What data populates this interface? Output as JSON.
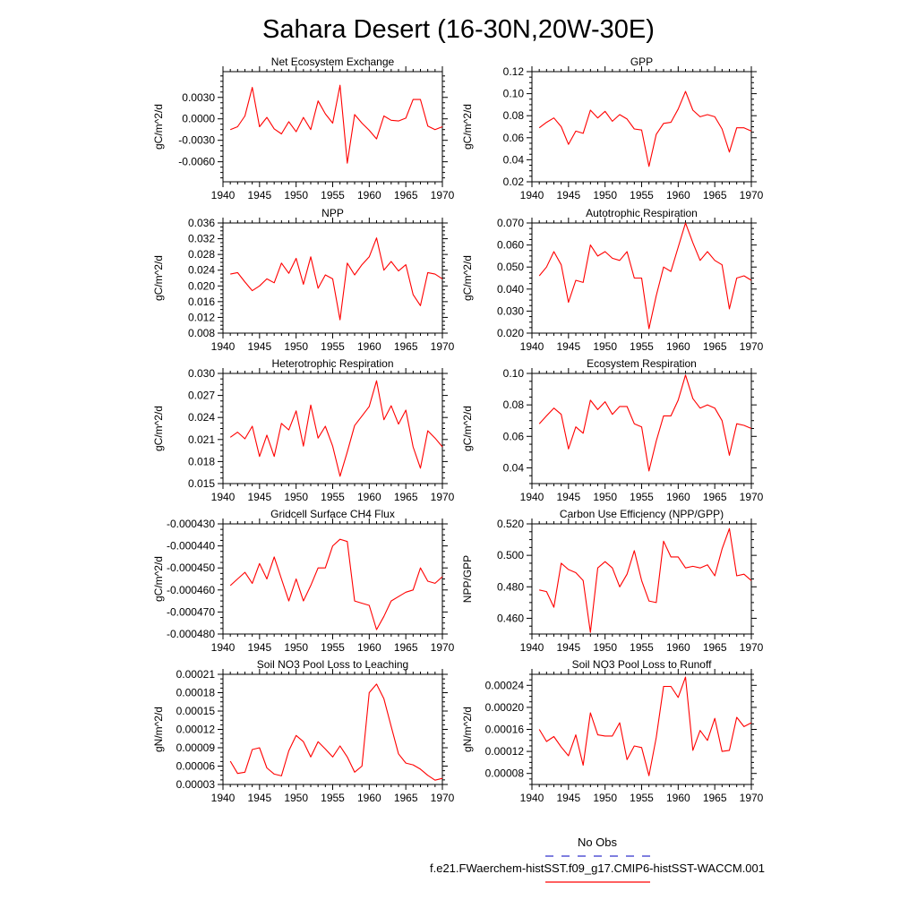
{
  "title": "Sahara Desert (16-30N,20W-30E)",
  "series_color": "#ff0000",
  "obs_color": "#3333cc",
  "legend": {
    "obs_label": "No Obs",
    "model_label": "f.e21.FWaerchem-histSST.f09_g17.CMIP6-histSST-WACCM.001"
  },
  "chart_data": [
    {
      "type": "line",
      "title": "Net Ecosystem Exchange",
      "ylabel": "gC/m^2/d",
      "xlim": [
        1940,
        1970
      ],
      "xticks": [
        1940,
        1945,
        1950,
        1955,
        1960,
        1965,
        1970
      ],
      "ylim": [
        -0.0088,
        0.0066
      ],
      "yticks": [
        "-0.0060",
        "-0.0030",
        "0.0000",
        "0.0030"
      ],
      "x": [
        1941,
        1942,
        1943,
        1944,
        1945,
        1946,
        1947,
        1948,
        1949,
        1950,
        1951,
        1952,
        1953,
        1954,
        1955,
        1956,
        1957,
        1958,
        1959,
        1960,
        1961,
        1962,
        1963,
        1964,
        1965,
        1966,
        1967,
        1968,
        1969,
        1970
      ],
      "y": [
        -0.0015,
        -0.0011,
        0.0004,
        0.0044,
        -0.0011,
        0.0002,
        -0.0014,
        -0.0021,
        -0.0004,
        -0.0018,
        0.0002,
        -0.0015,
        0.0025,
        0.0007,
        -0.0006,
        0.0047,
        -0.0062,
        0.0006,
        -0.0006,
        -0.0016,
        -0.0028,
        0.0004,
        -0.0002,
        -0.0003,
        0.0001,
        0.0027,
        0.0027,
        -0.001,
        -0.0015,
        -0.0011
      ]
    },
    {
      "type": "line",
      "title": "GPP",
      "ylabel": "gC/m^2/d",
      "xlim": [
        1940,
        1970
      ],
      "xticks": [
        1940,
        1945,
        1950,
        1955,
        1960,
        1965,
        1970
      ],
      "ylim": [
        0.02,
        0.12
      ],
      "yticks": [
        "0.02",
        "0.04",
        "0.06",
        "0.08",
        "0.10",
        "0.12"
      ],
      "x": [
        1941,
        1942,
        1943,
        1944,
        1945,
        1946,
        1947,
        1948,
        1949,
        1950,
        1951,
        1952,
        1953,
        1954,
        1955,
        1956,
        1957,
        1958,
        1959,
        1960,
        1961,
        1962,
        1963,
        1964,
        1965,
        1966,
        1967,
        1968,
        1969,
        1970
      ],
      "y": [
        0.069,
        0.074,
        0.078,
        0.07,
        0.054,
        0.066,
        0.064,
        0.085,
        0.078,
        0.084,
        0.075,
        0.081,
        0.077,
        0.068,
        0.067,
        0.034,
        0.063,
        0.073,
        0.074,
        0.086,
        0.102,
        0.085,
        0.079,
        0.081,
        0.079,
        0.068,
        0.047,
        0.069,
        0.069,
        0.066
      ]
    },
    {
      "type": "line",
      "title": "NPP",
      "ylabel": "gC/m^2/d",
      "xlim": [
        1940,
        1970
      ],
      "xticks": [
        1940,
        1945,
        1950,
        1955,
        1960,
        1965,
        1970
      ],
      "ylim": [
        0.008,
        0.036
      ],
      "yticks": [
        "0.008",
        "0.012",
        "0.016",
        "0.020",
        "0.024",
        "0.028",
        "0.032",
        "0.036"
      ],
      "x": [
        1941,
        1942,
        1943,
        1944,
        1945,
        1946,
        1947,
        1948,
        1949,
        1950,
        1951,
        1952,
        1953,
        1954,
        1955,
        1956,
        1957,
        1958,
        1959,
        1960,
        1961,
        1962,
        1963,
        1964,
        1965,
        1966,
        1967,
        1968,
        1969,
        1970
      ],
      "y": [
        0.023,
        0.0234,
        0.021,
        0.0188,
        0.02,
        0.0218,
        0.0208,
        0.0258,
        0.0232,
        0.027,
        0.0204,
        0.0274,
        0.0194,
        0.0228,
        0.0218,
        0.0114,
        0.0258,
        0.0228,
        0.0254,
        0.0274,
        0.0322,
        0.024,
        0.0262,
        0.0238,
        0.0254,
        0.0178,
        0.015,
        0.0234,
        0.023,
        0.0218
      ]
    },
    {
      "type": "line",
      "title": "Autotrophic Respiration",
      "ylabel": "gC/m^2/d",
      "xlim": [
        1940,
        1970
      ],
      "xticks": [
        1940,
        1945,
        1950,
        1955,
        1960,
        1965,
        1970
      ],
      "ylim": [
        0.02,
        0.07
      ],
      "yticks": [
        "0.020",
        "0.030",
        "0.040",
        "0.050",
        "0.060",
        "0.070"
      ],
      "x": [
        1941,
        1942,
        1943,
        1944,
        1945,
        1946,
        1947,
        1948,
        1949,
        1950,
        1951,
        1952,
        1953,
        1954,
        1955,
        1956,
        1957,
        1958,
        1959,
        1960,
        1961,
        1962,
        1963,
        1964,
        1965,
        1966,
        1967,
        1968,
        1969,
        1970
      ],
      "y": [
        0.046,
        0.05,
        0.057,
        0.051,
        0.034,
        0.044,
        0.043,
        0.06,
        0.055,
        0.057,
        0.054,
        0.053,
        0.057,
        0.045,
        0.045,
        0.022,
        0.037,
        0.05,
        0.048,
        0.059,
        0.07,
        0.061,
        0.053,
        0.057,
        0.053,
        0.051,
        0.031,
        0.045,
        0.046,
        0.044
      ]
    },
    {
      "type": "line",
      "title": "Heterotrophic Respiration",
      "ylabel": "gC/m^2/d",
      "xlim": [
        1940,
        1970
      ],
      "xticks": [
        1940,
        1945,
        1950,
        1955,
        1960,
        1965,
        1970
      ],
      "ylim": [
        0.015,
        0.03
      ],
      "yticks": [
        "0.015",
        "0.018",
        "0.021",
        "0.024",
        "0.027",
        "0.030"
      ],
      "x": [
        1941,
        1942,
        1943,
        1944,
        1945,
        1946,
        1947,
        1948,
        1949,
        1950,
        1951,
        1952,
        1953,
        1954,
        1955,
        1956,
        1957,
        1958,
        1959,
        1960,
        1961,
        1962,
        1963,
        1964,
        1965,
        1966,
        1967,
        1968,
        1969,
        1970
      ],
      "y": [
        0.0213,
        0.022,
        0.0211,
        0.0228,
        0.0187,
        0.0216,
        0.0187,
        0.0232,
        0.0223,
        0.0249,
        0.0201,
        0.0257,
        0.0212,
        0.0228,
        0.0201,
        0.016,
        0.0193,
        0.0229,
        0.0242,
        0.0255,
        0.029,
        0.0237,
        0.0256,
        0.0231,
        0.025,
        0.02,
        0.0171,
        0.0222,
        0.0212,
        0.02
      ]
    },
    {
      "type": "line",
      "title": "Ecosystem Respiration",
      "ylabel": "gC/m^2/d",
      "xlim": [
        1940,
        1970
      ],
      "xticks": [
        1940,
        1945,
        1950,
        1955,
        1960,
        1965,
        1970
      ],
      "ylim": [
        0.03,
        0.1
      ],
      "yticks": [
        "0.04",
        "0.06",
        "0.08",
        "0.10"
      ],
      "x": [
        1941,
        1942,
        1943,
        1944,
        1945,
        1946,
        1947,
        1948,
        1949,
        1950,
        1951,
        1952,
        1953,
        1954,
        1955,
        1956,
        1957,
        1958,
        1959,
        1960,
        1961,
        1962,
        1963,
        1964,
        1965,
        1966,
        1967,
        1968,
        1969,
        1970
      ],
      "y": [
        0.068,
        0.073,
        0.078,
        0.074,
        0.052,
        0.066,
        0.062,
        0.083,
        0.077,
        0.082,
        0.074,
        0.079,
        0.079,
        0.068,
        0.066,
        0.038,
        0.057,
        0.073,
        0.073,
        0.083,
        0.099,
        0.084,
        0.078,
        0.08,
        0.078,
        0.07,
        0.048,
        0.068,
        0.067,
        0.065
      ]
    },
    {
      "type": "line",
      "title": "Gridcell Surface CH4 Flux",
      "ylabel": "gC/m^2/d",
      "xlim": [
        1940,
        1970
      ],
      "xticks": [
        1940,
        1945,
        1950,
        1955,
        1960,
        1965,
        1970
      ],
      "ylim": [
        -0.00048,
        -0.00043
      ],
      "yticks": [
        "-0.000480",
        "-0.000470",
        "-0.000460",
        "-0.000450",
        "-0.000440",
        "-0.000430"
      ],
      "x": [
        1941,
        1942,
        1943,
        1944,
        1945,
        1946,
        1947,
        1948,
        1949,
        1950,
        1951,
        1952,
        1953,
        1954,
        1955,
        1956,
        1957,
        1958,
        1959,
        1960,
        1961,
        1962,
        1963,
        1964,
        1965,
        1966,
        1967,
        1968,
        1969,
        1970
      ],
      "y": [
        -0.000458,
        -0.000455,
        -0.000452,
        -0.000457,
        -0.000448,
        -0.000455,
        -0.000445,
        -0.000455,
        -0.000465,
        -0.000455,
        -0.000465,
        -0.000458,
        -0.00045,
        -0.00045,
        -0.00044,
        -0.000437,
        -0.000438,
        -0.000465,
        -0.000466,
        -0.000467,
        -0.000478,
        -0.000472,
        -0.000465,
        -0.000463,
        -0.000461,
        -0.00046,
        -0.00045,
        -0.000456,
        -0.000457,
        -0.000454
      ]
    },
    {
      "type": "line",
      "title": "Carbon Use Efficiency (NPP/GPP)",
      "ylabel": "NPP/GPP",
      "xlim": [
        1940,
        1970
      ],
      "xticks": [
        1940,
        1945,
        1950,
        1955,
        1960,
        1965,
        1970
      ],
      "ylim": [
        0.45,
        0.52
      ],
      "yticks": [
        "0.460",
        "0.480",
        "0.500",
        "0.520"
      ],
      "x": [
        1941,
        1942,
        1943,
        1944,
        1945,
        1946,
        1947,
        1948,
        1949,
        1950,
        1951,
        1952,
        1953,
        1954,
        1955,
        1956,
        1957,
        1958,
        1959,
        1960,
        1961,
        1962,
        1963,
        1964,
        1965,
        1966,
        1967,
        1968,
        1969,
        1970
      ],
      "y": [
        0.478,
        0.477,
        0.467,
        0.495,
        0.491,
        0.489,
        0.484,
        0.451,
        0.492,
        0.496,
        0.492,
        0.48,
        0.488,
        0.503,
        0.484,
        0.471,
        0.47,
        0.509,
        0.499,
        0.499,
        0.492,
        0.493,
        0.492,
        0.494,
        0.487,
        0.504,
        0.517,
        0.487,
        0.488,
        0.484
      ]
    },
    {
      "type": "line",
      "title": "Soil NO3 Pool Loss to Leaching",
      "ylabel": "gN/m^2/d",
      "xlim": [
        1940,
        1970
      ],
      "xticks": [
        1940,
        1945,
        1950,
        1955,
        1960,
        1965,
        1970
      ],
      "ylim": [
        3e-05,
        0.00021
      ],
      "yticks": [
        "0.00003",
        "0.00006",
        "0.00009",
        "0.00012",
        "0.00015",
        "0.00018",
        "0.00021"
      ],
      "x": [
        1941,
        1942,
        1943,
        1944,
        1945,
        1946,
        1947,
        1948,
        1949,
        1950,
        1951,
        1952,
        1953,
        1954,
        1955,
        1956,
        1957,
        1958,
        1959,
        1960,
        1961,
        1962,
        1963,
        1964,
        1965,
        1966,
        1967,
        1968,
        1969,
        1970
      ],
      "y": [
        6.8e-05,
        4.8e-05,
        5e-05,
        8.7e-05,
        9e-05,
        5.7e-05,
        4.7e-05,
        4.4e-05,
        8.5e-05,
        0.00011,
        0.0001,
        7.5e-05,
        0.0001,
        8.8e-05,
        7.5e-05,
        9.3e-05,
        7.5e-05,
        5e-05,
        6e-05,
        0.00018,
        0.000194,
        0.00017,
        0.000125,
        8e-05,
        6.5e-05,
        6.2e-05,
        5.5e-05,
        4.5e-05,
        3.7e-05,
        4e-05
      ]
    },
    {
      "type": "line",
      "title": "Soil NO3 Pool Loss to Runoff",
      "ylabel": "gN/m^2/d",
      "xlim": [
        1940,
        1970
      ],
      "xticks": [
        1940,
        1945,
        1950,
        1955,
        1960,
        1965,
        1970
      ],
      "ylim": [
        6e-05,
        0.00026
      ],
      "yticks": [
        "0.00008",
        "0.00012",
        "0.00016",
        "0.00020",
        "0.00024"
      ],
      "x": [
        1941,
        1942,
        1943,
        1944,
        1945,
        1946,
        1947,
        1948,
        1949,
        1950,
        1951,
        1952,
        1953,
        1954,
        1955,
        1956,
        1957,
        1958,
        1959,
        1960,
        1961,
        1962,
        1963,
        1964,
        1965,
        1966,
        1967,
        1968,
        1969,
        1970
      ],
      "y": [
        0.00016,
        0.000138,
        0.000147,
        0.000128,
        0.000112,
        0.00015,
        9.5e-05,
        0.00019,
        0.00015,
        0.000148,
        0.000148,
        0.000172,
        0.000105,
        0.00013,
        0.000127,
        7.6e-05,
        0.000145,
        0.000238,
        0.000238,
        0.000218,
        0.000255,
        0.000122,
        0.000158,
        0.00014,
        0.00018,
        0.00012,
        0.000122,
        0.000182,
        0.000165,
        0.000172
      ]
    }
  ]
}
